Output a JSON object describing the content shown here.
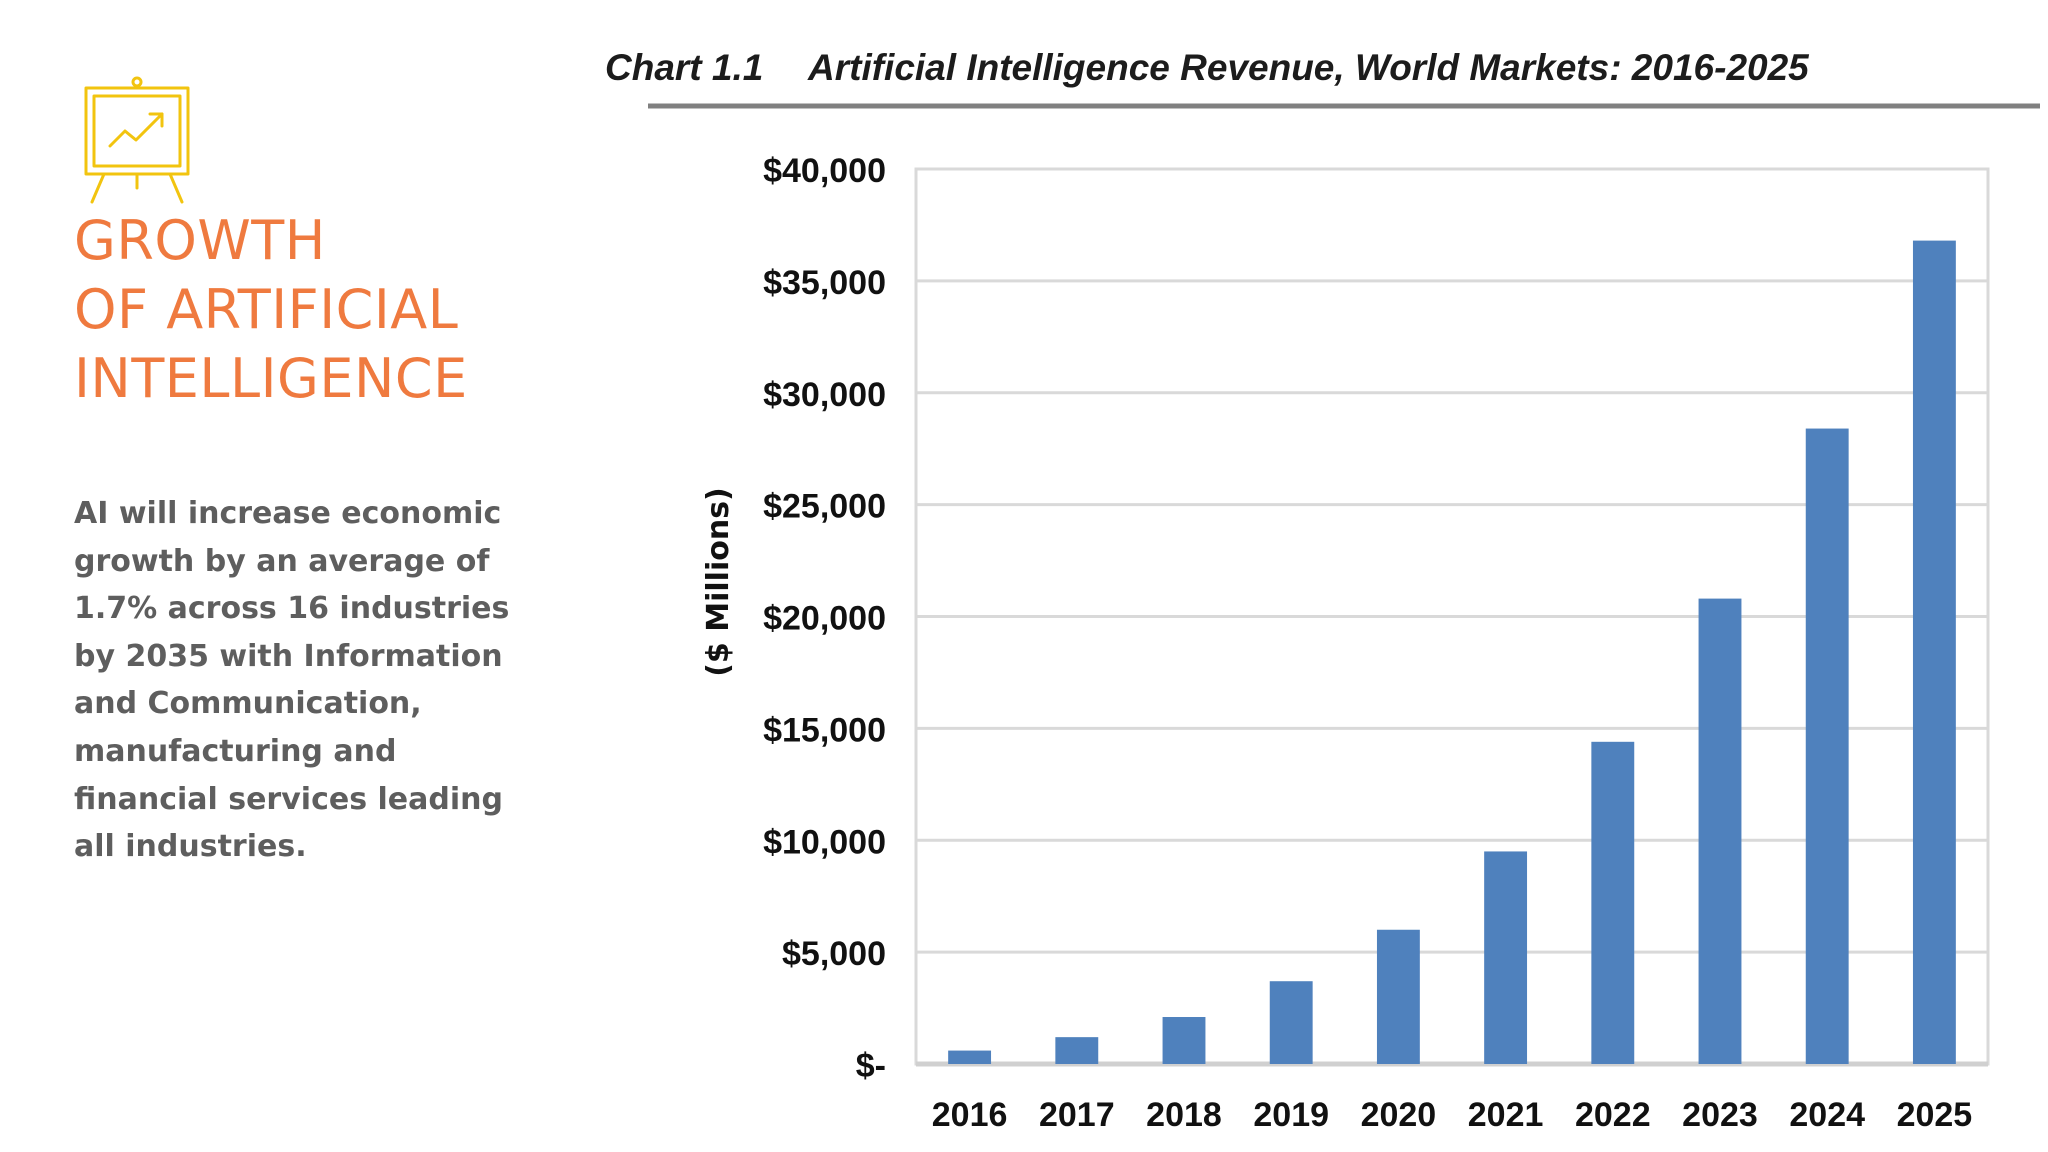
{
  "slide": {
    "heading_lines": [
      "GROWTH",
      "OF ARTIFICIAL",
      "INTELLIGENCE"
    ],
    "body_lines": [
      "AI will increase economic",
      "growth by an average of",
      "1.7% across 16 industries",
      "by 2035 with Information",
      "and Communication,",
      "manufacturing and",
      "financial services leading",
      "all industries."
    ],
    "icon": "presentation-chart-icon",
    "heading_color": "#ef7a3f",
    "icon_color": "#f2c40f",
    "body_color": "#5e5e5e"
  },
  "chart_data": {
    "type": "bar",
    "chart_number": "Chart 1.1",
    "title": "Artificial Intelligence Revenue, World Markets: 2016-2025",
    "xlabel": "",
    "ylabel": "($ Millions)",
    "categories": [
      "2016",
      "2017",
      "2018",
      "2019",
      "2020",
      "2021",
      "2022",
      "2023",
      "2024",
      "2025"
    ],
    "values": [
      600,
      1200,
      2100,
      3700,
      6000,
      9500,
      14400,
      20800,
      28400,
      36800
    ],
    "ylim": [
      0,
      40000
    ],
    "yticks": [
      0,
      5000,
      10000,
      15000,
      20000,
      25000,
      30000,
      35000,
      40000
    ],
    "ytick_labels": [
      "$-",
      "$5,000",
      "$10,000",
      "$15,000",
      "$20,000",
      "$25,000",
      "$30,000",
      "$35,000",
      "$40,000"
    ],
    "grid": true,
    "legend": "none",
    "bar_color": "#4f81bd"
  }
}
